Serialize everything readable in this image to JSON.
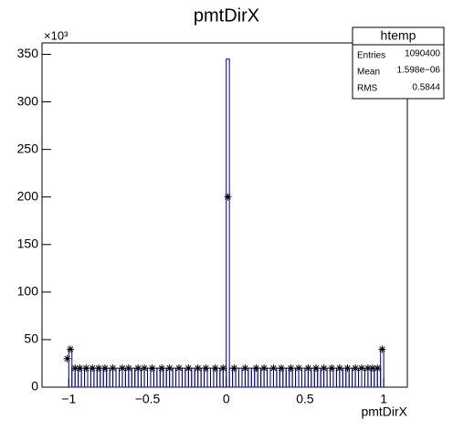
{
  "chart_data": {
    "type": "histogram",
    "title": "pmtDirX",
    "x_label": "pmtDirX",
    "y_multiplier": "×10³",
    "bins": [
      -1,
      -0.98,
      -0.96,
      -0.94,
      -0.92,
      -0.9,
      -0.88,
      -0.86,
      -0.84,
      -0.82,
      -0.8,
      -0.78,
      -0.76,
      -0.74,
      -0.72,
      -0.7,
      -0.68,
      -0.66,
      -0.64,
      -0.62,
      -0.6,
      -0.58,
      -0.56,
      -0.54,
      -0.52,
      -0.5,
      -0.48,
      -0.46,
      -0.44,
      -0.42,
      -0.4,
      -0.38,
      -0.36,
      -0.34,
      -0.32,
      -0.3,
      -0.28,
      -0.26,
      -0.24,
      -0.22,
      -0.2,
      -0.18,
      -0.16,
      -0.14,
      -0.12,
      -0.1,
      -0.08,
      -0.06,
      -0.04,
      -0.02,
      0,
      0.02,
      0.04,
      0.06,
      0.08,
      0.1,
      0.12,
      0.14,
      0.16,
      0.18,
      0.2,
      0.22,
      0.24,
      0.26,
      0.28,
      0.3,
      0.32,
      0.34,
      0.36,
      0.38,
      0.4,
      0.42,
      0.44,
      0.46,
      0.48,
      0.5,
      0.52,
      0.54,
      0.56,
      0.58,
      0.6,
      0.62,
      0.64,
      0.66,
      0.68,
      0.7,
      0.72,
      0.74,
      0.76,
      0.78,
      0.8,
      0.82,
      0.84,
      0.86,
      0.88,
      0.9,
      0.92,
      0.94,
      0.96,
      0.98,
      1
    ],
    "values": [
      40,
      20,
      20,
      20,
      20,
      20,
      20,
      20,
      20,
      20,
      20,
      20,
      20,
      20,
      20,
      20,
      20,
      20,
      20,
      20,
      20,
      20,
      20,
      20,
      20,
      20,
      20,
      20,
      20,
      20,
      20,
      20,
      20,
      20,
      20,
      20,
      20,
      20,
      20,
      20,
      20,
      20,
      20,
      20,
      20,
      20,
      20,
      20,
      20,
      20,
      345,
      20,
      20,
      20,
      20,
      20,
      20,
      20,
      20,
      20,
      20,
      20,
      20,
      20,
      20,
      20,
      20,
      20,
      20,
      20,
      20,
      20,
      20,
      20,
      20,
      20,
      20,
      20,
      20,
      20,
      20,
      20,
      20,
      20,
      20,
      20,
      20,
      20,
      20,
      20,
      20,
      20,
      20,
      20,
      20,
      20,
      20,
      20,
      20,
      40
    ],
    "color": "#000080",
    "markers": {
      "x": [
        -1.01,
        -0.99,
        -0.96,
        -0.93,
        -0.89,
        -0.85,
        -0.81,
        -0.77,
        -0.72,
        -0.66,
        -0.62,
        -0.56,
        -0.52,
        -0.47,
        -0.41,
        -0.36,
        -0.3,
        -0.24,
        -0.18,
        -0.13,
        -0.07,
        -0.02,
        0.01,
        0.05,
        0.12,
        0.19,
        0.24,
        0.3,
        0.35,
        0.41,
        0.46,
        0.52,
        0.57,
        0.62,
        0.67,
        0.72,
        0.77,
        0.82,
        0.86,
        0.9,
        0.93,
        0.96,
        0.99
      ],
      "y": [
        30,
        40,
        20,
        20,
        20,
        20,
        20,
        20,
        20,
        20,
        20,
        20,
        20,
        20,
        20,
        20,
        20,
        20,
        20,
        20,
        20,
        20,
        200,
        20,
        20,
        20,
        20,
        20,
        20,
        20,
        20,
        20,
        20,
        20,
        20,
        20,
        20,
        20,
        20,
        20,
        20,
        20,
        40
      ],
      "color": "#000000"
    },
    "xlim": [
      -1.17,
      1.15
    ],
    "ylim": [
      0,
      362
    ],
    "xticks": [
      {
        "value": -1,
        "label": "−1"
      },
      {
        "value": -0.5,
        "label": "−0.5"
      },
      0,
      0.5,
      1
    ],
    "yticks": [
      0,
      50,
      100,
      150,
      200,
      250,
      300,
      350
    ],
    "stats": {
      "title": "htemp",
      "rows": [
        [
          "Entries",
          "1090400"
        ],
        [
          "Mean",
          "1.598e−06"
        ],
        [
          "RMS",
          "0.5844"
        ]
      ]
    }
  }
}
